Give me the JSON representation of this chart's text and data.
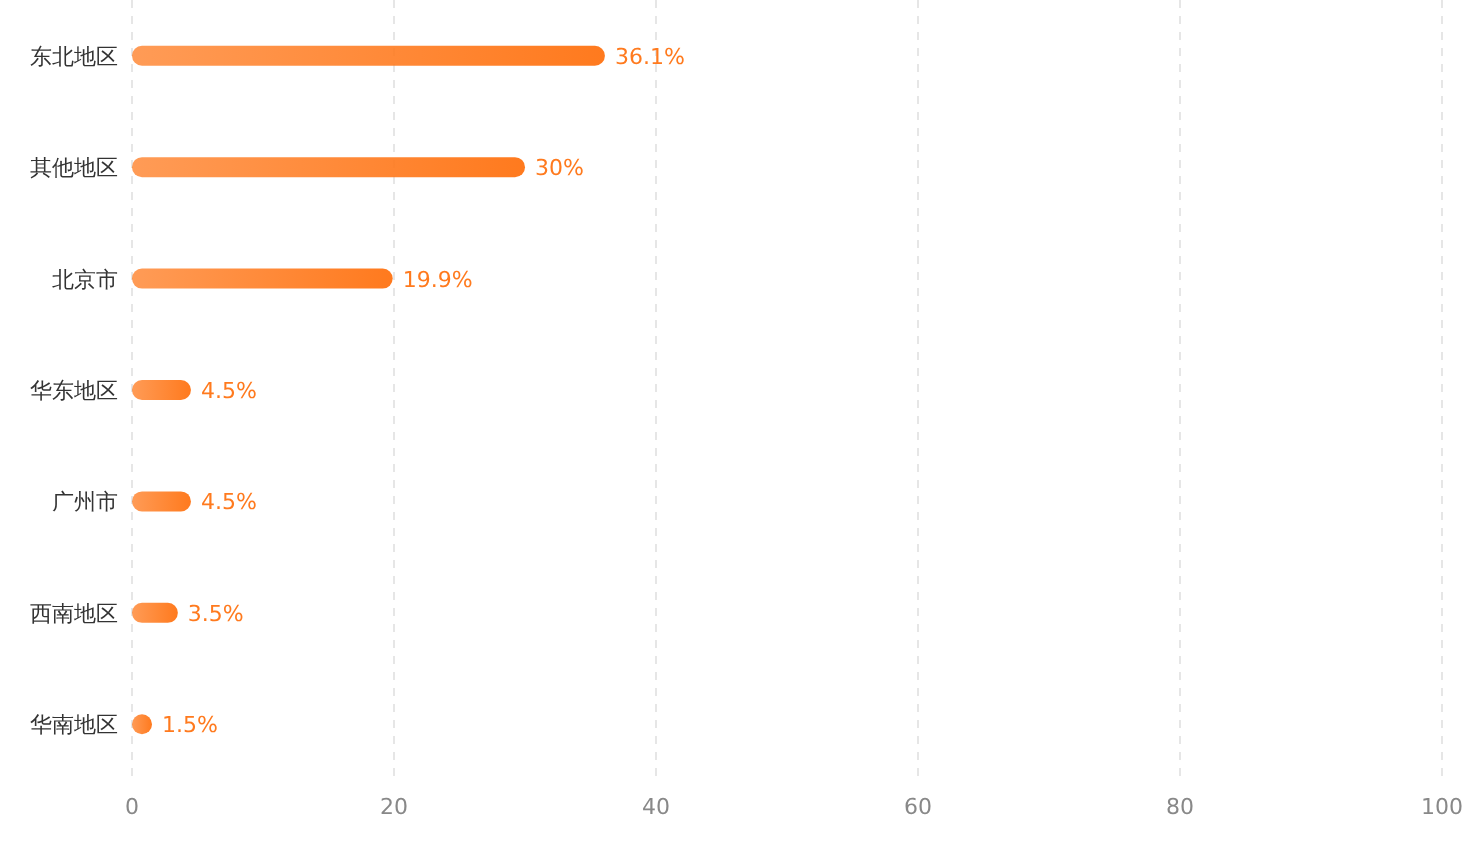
{
  "chart_data": {
    "type": "bar",
    "orientation": "horizontal",
    "categories": [
      "东北地区",
      "其他地区",
      "北京市",
      "华东地区",
      "广州市",
      "西南地区",
      "华南地区"
    ],
    "values": [
      36.1,
      30,
      19.9,
      4.5,
      4.5,
      3.5,
      1.5
    ],
    "value_labels": [
      "36.1%",
      "30%",
      "19.9%",
      "4.5%",
      "4.5%",
      "3.5%",
      "1.5%"
    ],
    "color": "#ff7a1e",
    "xlim": [
      0,
      100
    ],
    "xticks": [
      0,
      20,
      40,
      60,
      80,
      100
    ],
    "grid": "x"
  }
}
